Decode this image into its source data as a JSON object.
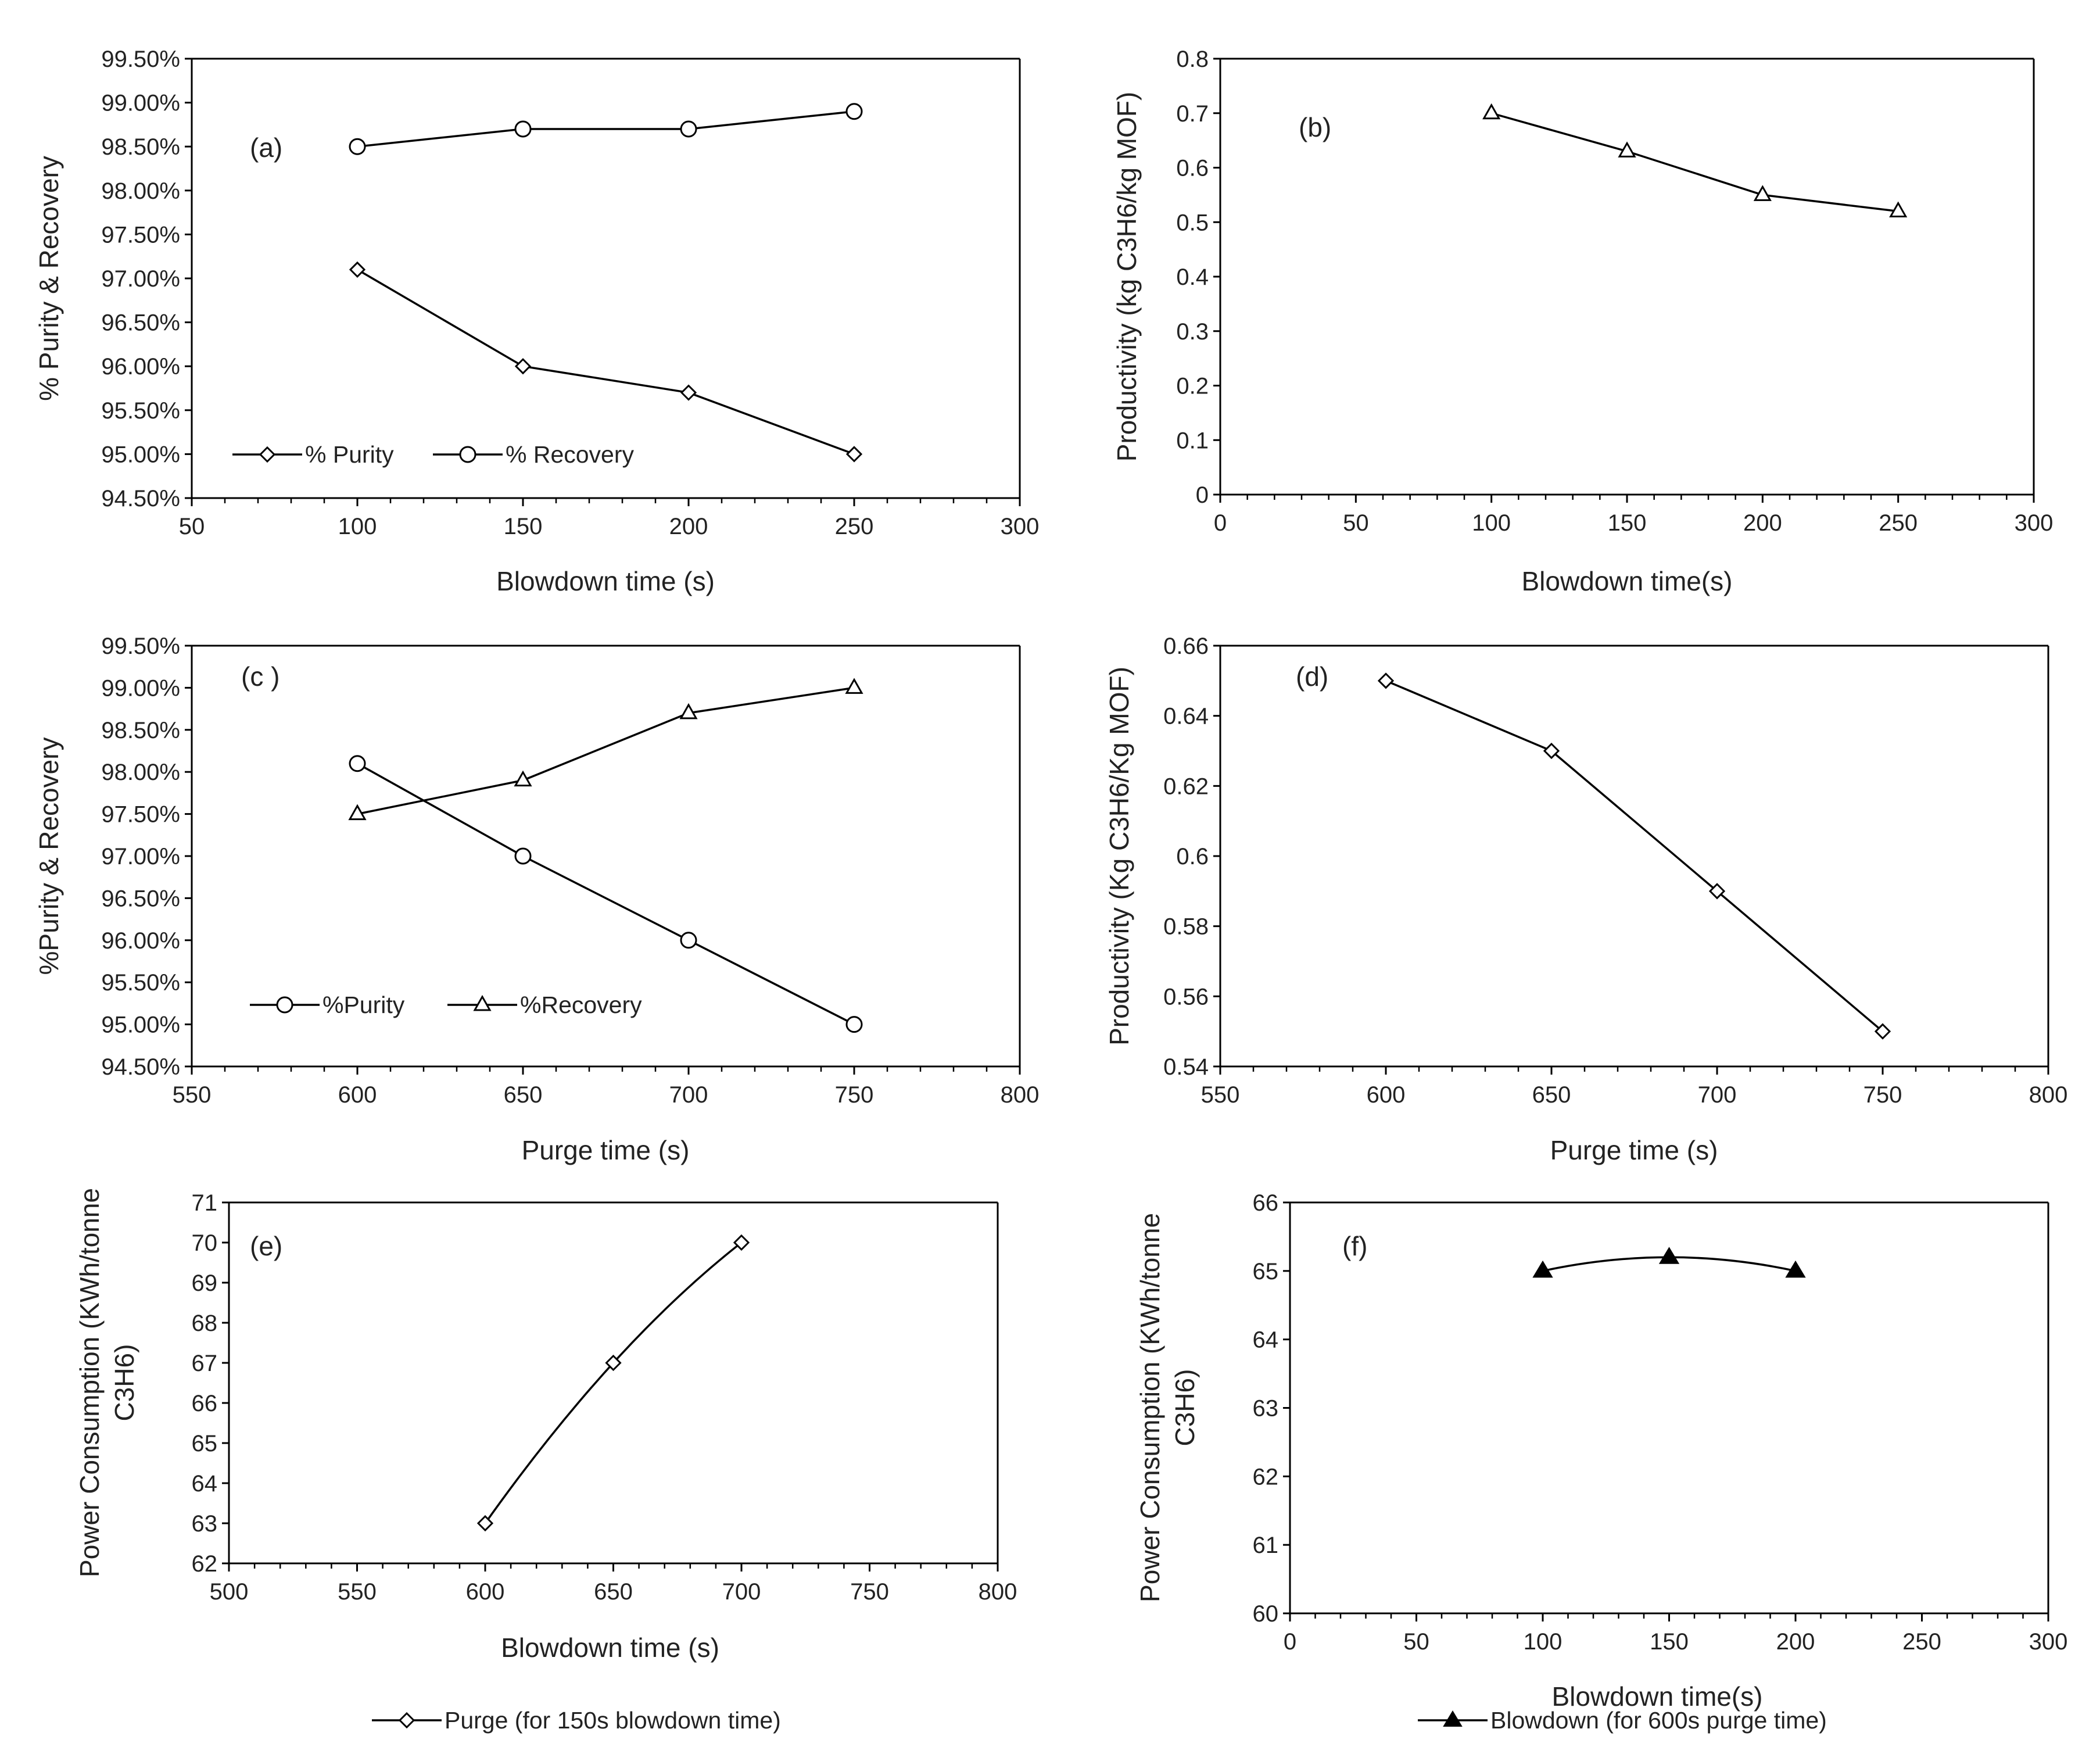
{
  "chart_data": [
    {
      "type": "line",
      "panel_label": "(a)",
      "xlabel": "Blowdown time (s)",
      "ylabel": "% Purity & Recovery",
      "xlim": [
        50,
        300
      ],
      "ylim": [
        94.5,
        99.5
      ],
      "xticks": [
        50,
        100,
        150,
        200,
        250,
        300
      ],
      "yticks": [
        "94.50%",
        "95.00%",
        "95.50%",
        "96.00%",
        "96.50%",
        "97.00%",
        "97.50%",
        "98.00%",
        "98.50%",
        "99.00%",
        "99.50%"
      ],
      "legend_position": "bottom-left",
      "series": [
        {
          "name": "% Purity",
          "marker": "diamond",
          "x": [
            100,
            150,
            200,
            250
          ],
          "values": [
            97.1,
            96.0,
            95.7,
            95.0
          ]
        },
        {
          "name": "% Recovery",
          "marker": "circle",
          "x": [
            100,
            150,
            200,
            250
          ],
          "values": [
            98.5,
            98.7,
            98.7,
            98.9
          ]
        }
      ]
    },
    {
      "type": "line",
      "panel_label": "(b)",
      "xlabel": "Blowdown time(s)",
      "ylabel": "Productivity (kg C3H6/kg MOF)",
      "xlim": [
        0,
        300
      ],
      "ylim": [
        0,
        0.8
      ],
      "xticks": [
        0,
        50,
        100,
        150,
        200,
        250,
        300
      ],
      "yticks": [
        "0",
        "0.1",
        "0.2",
        "0.3",
        "0.4",
        "0.5",
        "0.6",
        "0.7",
        "0.8"
      ],
      "series": [
        {
          "name": "Productivity",
          "marker": "triangle",
          "x": [
            100,
            150,
            200,
            250
          ],
          "values": [
            0.7,
            0.63,
            0.55,
            0.52
          ]
        }
      ]
    },
    {
      "type": "line",
      "panel_label": "(c )",
      "xlabel": "Purge time (s)",
      "ylabel": "%Purity & Recovery",
      "xlim": [
        550,
        800
      ],
      "ylim": [
        94.5,
        99.5
      ],
      "xticks": [
        550,
        600,
        650,
        700,
        750,
        800
      ],
      "yticks": [
        "94.50%",
        "95.00%",
        "95.50%",
        "96.00%",
        "96.50%",
        "97.00%",
        "97.50%",
        "98.00%",
        "98.50%",
        "99.00%",
        "99.50%"
      ],
      "legend_position": "bottom-left",
      "series": [
        {
          "name": "%Purity",
          "marker": "circle",
          "x": [
            600,
            650,
            700,
            750
          ],
          "values": [
            98.1,
            97.0,
            96.0,
            95.0
          ]
        },
        {
          "name": "%Recovery",
          "marker": "triangle",
          "x": [
            600,
            650,
            700,
            750
          ],
          "values": [
            97.5,
            97.9,
            98.7,
            99.0
          ]
        }
      ]
    },
    {
      "type": "line",
      "panel_label": "(d)",
      "xlabel": "Purge time (s)",
      "ylabel": "Productivity (Kg C3H6/Kg MOF)",
      "xlim": [
        550,
        800
      ],
      "ylim": [
        0.54,
        0.66
      ],
      "xticks": [
        550,
        600,
        650,
        700,
        750,
        800
      ],
      "yticks": [
        "0.54",
        "0.56",
        "0.58",
        "0.6",
        "0.62",
        "0.64",
        "0.66"
      ],
      "series": [
        {
          "name": "Productivity",
          "marker": "diamond",
          "x": [
            600,
            650,
            700,
            750
          ],
          "values": [
            0.65,
            0.63,
            0.59,
            0.55
          ]
        }
      ]
    },
    {
      "type": "line",
      "panel_label": "(e)",
      "xlabel": "Blowdown time (s)",
      "ylabel_line1": "Power Consumption (KWh/tonne",
      "ylabel_line2": "C3H6)",
      "xlim": [
        500,
        800
      ],
      "ylim": [
        62,
        71
      ],
      "xticks": [
        500,
        550,
        600,
        650,
        700,
        750,
        800
      ],
      "yticks": [
        "62",
        "63",
        "64",
        "65",
        "66",
        "67",
        "68",
        "69",
        "70",
        "71"
      ],
      "legend_position": "bottom",
      "series": [
        {
          "name": "Purge (for 150s blowdown time)",
          "marker": "diamond",
          "x": [
            600,
            650,
            700
          ],
          "values": [
            63,
            67,
            70
          ]
        }
      ]
    },
    {
      "type": "line",
      "panel_label": "(f)",
      "xlabel": "Blowdown time(s)",
      "ylabel_line1": "Power Consumption (KWh/tonne",
      "ylabel_line2": "C3H6)",
      "xlim": [
        0,
        300
      ],
      "ylim": [
        60,
        66
      ],
      "xticks": [
        0,
        50,
        100,
        150,
        200,
        250,
        300
      ],
      "yticks": [
        "60",
        "61",
        "62",
        "63",
        "64",
        "65",
        "66"
      ],
      "legend_position": "bottom",
      "series": [
        {
          "name": "Blowdown (for 600s purge time)",
          "marker": "filled-triangle",
          "x": [
            100,
            150,
            200
          ],
          "values": [
            65.0,
            65.2,
            65.0
          ]
        }
      ]
    }
  ]
}
